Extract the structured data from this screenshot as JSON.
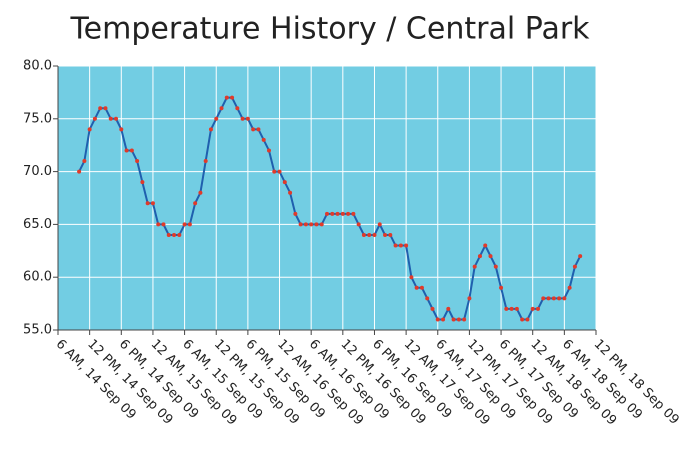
{
  "chart_data": {
    "type": "line",
    "title": "Temperature History / Central Park",
    "x": [
      "2009-09-14T10:00",
      "2009-09-14T11:00",
      "2009-09-14T12:00",
      "2009-09-14T13:00",
      "2009-09-14T14:00",
      "2009-09-14T15:00",
      "2009-09-14T16:00",
      "2009-09-14T17:00",
      "2009-09-14T18:00",
      "2009-09-14T19:00",
      "2009-09-14T20:00",
      "2009-09-14T21:00",
      "2009-09-14T22:00",
      "2009-09-14T23:00",
      "2009-09-15T00:00",
      "2009-09-15T01:00",
      "2009-09-15T02:00",
      "2009-09-15T03:00",
      "2009-09-15T04:00",
      "2009-09-15T05:00",
      "2009-09-15T06:00",
      "2009-09-15T07:00",
      "2009-09-15T08:00",
      "2009-09-15T09:00",
      "2009-09-15T10:00",
      "2009-09-15T11:00",
      "2009-09-15T12:00",
      "2009-09-15T13:00",
      "2009-09-15T14:00",
      "2009-09-15T15:00",
      "2009-09-15T16:00",
      "2009-09-15T17:00",
      "2009-09-15T18:00",
      "2009-09-15T19:00",
      "2009-09-15T20:00",
      "2009-09-15T21:00",
      "2009-09-15T22:00",
      "2009-09-15T23:00",
      "2009-09-16T00:00",
      "2009-09-16T01:00",
      "2009-09-16T02:00",
      "2009-09-16T03:00",
      "2009-09-16T04:00",
      "2009-09-16T05:00",
      "2009-09-16T06:00",
      "2009-09-16T07:00",
      "2009-09-16T08:00",
      "2009-09-16T09:00",
      "2009-09-16T10:00",
      "2009-09-16T11:00",
      "2009-09-16T12:00",
      "2009-09-16T13:00",
      "2009-09-16T14:00",
      "2009-09-16T15:00",
      "2009-09-16T16:00",
      "2009-09-16T17:00",
      "2009-09-16T18:00",
      "2009-09-16T19:00",
      "2009-09-16T20:00",
      "2009-09-16T21:00",
      "2009-09-16T22:00",
      "2009-09-16T23:00",
      "2009-09-17T00:00",
      "2009-09-17T01:00",
      "2009-09-17T02:00",
      "2009-09-17T03:00",
      "2009-09-17T04:00",
      "2009-09-17T05:00",
      "2009-09-17T06:00",
      "2009-09-17T07:00",
      "2009-09-17T08:00",
      "2009-09-17T09:00",
      "2009-09-17T10:00",
      "2009-09-17T11:00",
      "2009-09-17T12:00",
      "2009-09-17T13:00",
      "2009-09-17T14:00",
      "2009-09-17T15:00",
      "2009-09-17T16:00",
      "2009-09-17T17:00",
      "2009-09-17T18:00",
      "2009-09-17T19:00",
      "2009-09-17T20:00",
      "2009-09-17T21:00",
      "2009-09-17T22:00",
      "2009-09-17T23:00",
      "2009-09-18T00:00",
      "2009-09-18T01:00",
      "2009-09-18T02:00",
      "2009-09-18T03:00",
      "2009-09-18T04:00",
      "2009-09-18T05:00",
      "2009-09-18T06:00",
      "2009-09-18T07:00",
      "2009-09-18T08:00",
      "2009-09-18T09:00"
    ],
    "series": [
      {
        "color": "#1f5fae",
        "marker_color": "#e03a2a",
        "values": [
          70,
          71,
          74,
          75,
          76,
          76,
          75,
          75,
          74,
          72,
          72,
          71,
          69,
          67,
          67,
          65,
          65,
          64,
          64,
          64,
          65,
          65,
          67,
          68,
          71,
          74,
          75,
          76,
          77,
          77,
          76,
          75,
          75,
          74,
          74,
          73,
          72,
          70,
          70,
          69,
          68,
          66,
          65,
          65,
          65,
          65,
          65,
          66,
          66,
          66,
          66,
          66,
          66,
          65,
          64,
          64,
          64,
          65,
          64,
          64,
          63,
          63,
          63,
          60,
          59,
          59,
          58,
          57,
          56,
          56,
          57,
          56,
          56,
          56,
          58,
          61,
          62,
          63,
          62,
          61,
          59,
          57,
          57,
          57,
          56,
          56,
          57,
          57,
          58,
          58,
          58,
          58,
          58,
          59,
          61,
          62
        ]
      }
    ],
    "xlim": [
      "2009-09-14T06:00",
      "2009-09-18T12:00"
    ],
    "xticks": [
      {
        "value": "2009-09-14T06:00",
        "label": "6 AM, 14 Sep 09"
      },
      {
        "value": "2009-09-14T12:00",
        "label": "12 PM, 14 Sep 09"
      },
      {
        "value": "2009-09-14T18:00",
        "label": "6 PM, 14 Sep 09"
      },
      {
        "value": "2009-09-15T00:00",
        "label": "12 AM, 15 Sep 09"
      },
      {
        "value": "2009-09-15T06:00",
        "label": "6 AM, 15 Sep 09"
      },
      {
        "value": "2009-09-15T12:00",
        "label": "12 PM, 15 Sep 09"
      },
      {
        "value": "2009-09-15T18:00",
        "label": "6 PM, 15 Sep 09"
      },
      {
        "value": "2009-09-16T00:00",
        "label": "12 AM, 16 Sep 09"
      },
      {
        "value": "2009-09-16T06:00",
        "label": "6 AM, 16 Sep 09"
      },
      {
        "value": "2009-09-16T12:00",
        "label": "12 PM, 16 Sep 09"
      },
      {
        "value": "2009-09-16T18:00",
        "label": "6 PM, 16 Sep 09"
      },
      {
        "value": "2009-09-17T00:00",
        "label": "12 AM, 17 Sep 09"
      },
      {
        "value": "2009-09-17T06:00",
        "label": "6 AM, 17 Sep 09"
      },
      {
        "value": "2009-09-17T12:00",
        "label": "12 PM, 17 Sep 09"
      },
      {
        "value": "2009-09-17T18:00",
        "label": "6 PM, 17 Sep 09"
      },
      {
        "value": "2009-09-18T00:00",
        "label": "12 AM, 18 Sep 09"
      },
      {
        "value": "2009-09-18T06:00",
        "label": "6 AM, 18 Sep 09"
      },
      {
        "value": "2009-09-18T12:00",
        "label": "12 PM, 18 Sep 09"
      }
    ],
    "ylim": [
      55,
      80
    ],
    "yticks": [
      {
        "value": 55,
        "label": "55.0"
      },
      {
        "value": 60,
        "label": "60.0"
      },
      {
        "value": 65,
        "label": "65.0"
      },
      {
        "value": 70,
        "label": "70.0"
      },
      {
        "value": 75,
        "label": "75.0"
      },
      {
        "value": 80,
        "label": "80.0"
      }
    ],
    "grid": true,
    "plot_background": "#72cde3"
  }
}
